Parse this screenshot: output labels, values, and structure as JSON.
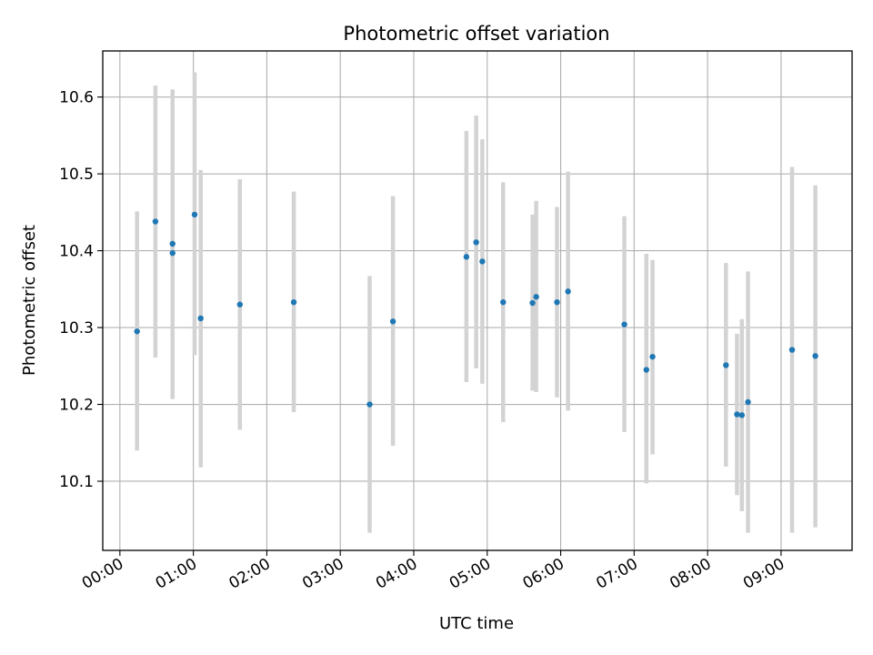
{
  "chart_data": {
    "type": "scatter",
    "title": "Photometric offset variation",
    "xlabel": "UTC time",
    "ylabel": "Photometric offset",
    "x_tick_labels": [
      "00:00",
      "01:00",
      "02:00",
      "03:00",
      "04:00",
      "05:00",
      "06:00",
      "07:00",
      "08:00",
      "09:00"
    ],
    "y_tick_labels": [
      "10.1",
      "10.2",
      "10.3",
      "10.4",
      "10.5",
      "10.6"
    ],
    "xlim": [
      "-00:14",
      "09:58"
    ],
    "ylim": [
      10.01,
      10.66
    ],
    "grid": true,
    "colors": {
      "marker": "#1f77b4",
      "errorbar": "#d3d3d3",
      "grid": "#b0b0b0"
    },
    "series": [
      {
        "points": [
          {
            "time": "00:14",
            "value": 10.295,
            "lower": 10.14,
            "upper": 10.451
          },
          {
            "time": "00:29",
            "value": 10.438,
            "lower": 10.261,
            "upper": 10.615
          },
          {
            "time": "00:43",
            "value": 10.409,
            "lower": 10.23,
            "upper": 10.61
          },
          {
            "time": "00:43",
            "value": 10.397,
            "lower": 10.207,
            "upper": 10.588
          },
          {
            "time": "01:01",
            "value": 10.447,
            "lower": 10.264,
            "upper": 10.632
          },
          {
            "time": "01:06",
            "value": 10.312,
            "lower": 10.118,
            "upper": 10.505
          },
          {
            "time": "01:38",
            "value": 10.33,
            "lower": 10.167,
            "upper": 10.493
          },
          {
            "time": "02:22",
            "value": 10.333,
            "lower": 10.19,
            "upper": 10.477
          },
          {
            "time": "03:24",
            "value": 10.2,
            "lower": 10.033,
            "upper": 10.367
          },
          {
            "time": "03:43",
            "value": 10.308,
            "lower": 10.146,
            "upper": 10.471
          },
          {
            "time": "04:43",
            "value": 10.392,
            "lower": 10.229,
            "upper": 10.556
          },
          {
            "time": "04:51",
            "value": 10.411,
            "lower": 10.247,
            "upper": 10.576
          },
          {
            "time": "04:56",
            "value": 10.386,
            "lower": 10.227,
            "upper": 10.545
          },
          {
            "time": "05:13",
            "value": 10.333,
            "lower": 10.177,
            "upper": 10.489
          },
          {
            "time": "05:37",
            "value": 10.332,
            "lower": 10.218,
            "upper": 10.447
          },
          {
            "time": "05:40",
            "value": 10.34,
            "lower": 10.216,
            "upper": 10.465
          },
          {
            "time": "05:57",
            "value": 10.333,
            "lower": 10.209,
            "upper": 10.457
          },
          {
            "time": "06:06",
            "value": 10.347,
            "lower": 10.192,
            "upper": 10.503
          },
          {
            "time": "06:52",
            "value": 10.304,
            "lower": 10.164,
            "upper": 10.445
          },
          {
            "time": "07:10",
            "value": 10.245,
            "lower": 10.097,
            "upper": 10.396
          },
          {
            "time": "07:15",
            "value": 10.262,
            "lower": 10.135,
            "upper": 10.388
          },
          {
            "time": "08:15",
            "value": 10.251,
            "lower": 10.119,
            "upper": 10.384
          },
          {
            "time": "08:24",
            "value": 10.187,
            "lower": 10.082,
            "upper": 10.292
          },
          {
            "time": "08:28",
            "value": 10.186,
            "lower": 10.061,
            "upper": 10.311
          },
          {
            "time": "08:33",
            "value": 10.203,
            "lower": 10.033,
            "upper": 10.373
          },
          {
            "time": "09:09",
            "value": 10.271,
            "lower": 10.033,
            "upper": 10.509
          },
          {
            "time": "09:28",
            "value": 10.263,
            "lower": 10.04,
            "upper": 10.485
          }
        ]
      }
    ]
  }
}
